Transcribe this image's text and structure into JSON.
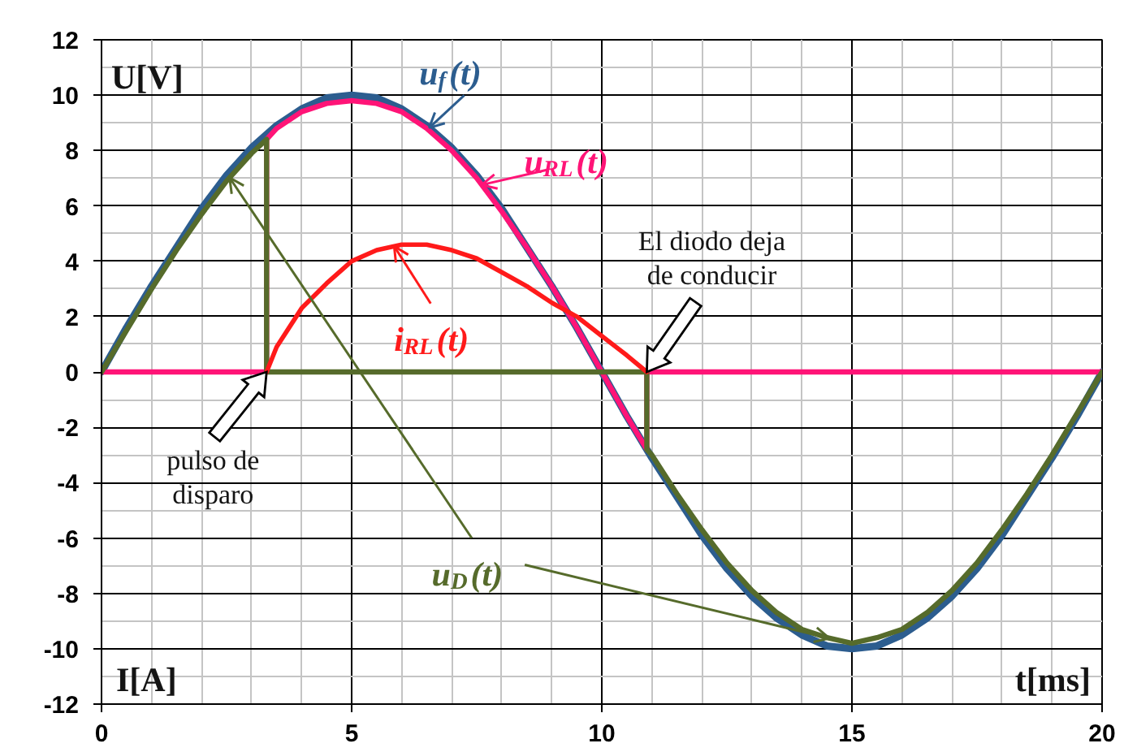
{
  "chart_data": {
    "type": "line",
    "xlabel": "t[ms]",
    "ylabel": "U[V]",
    "annotations": [
      "I[A]",
      {
        "text": "pulso de\ndisparo",
        "x": 3.3,
        "y": 0
      },
      {
        "text": "El diodo deja\nde conducir",
        "x": 10.9,
        "y": 0
      }
    ],
    "xlim": [
      0,
      20
    ],
    "ylim": [
      -12,
      12
    ],
    "xticks": [
      0,
      {
        "value": 1,
        "label": null
      },
      {
        "value": 2,
        "label": null
      },
      {
        "value": 3,
        "label": null
      },
      {
        "value": 4,
        "label": null
      },
      5,
      {
        "value": 6,
        "label": null
      },
      {
        "value": 7,
        "label": null
      },
      {
        "value": 8,
        "label": null
      },
      {
        "value": 9,
        "label": null
      },
      10,
      {
        "value": 11,
        "label": null
      },
      {
        "value": 12,
        "label": null
      },
      {
        "value": 13,
        "label": null
      },
      {
        "value": 14,
        "label": null
      },
      15,
      {
        "value": 16,
        "label": null
      },
      {
        "value": 17,
        "label": null
      },
      {
        "value": 18,
        "label": null
      },
      {
        "value": 19,
        "label": null
      },
      20
    ],
    "yticks": [
      -12,
      {
        "value": -11,
        "label": null
      },
      -10,
      {
        "value": -9,
        "label": null
      },
      -8,
      {
        "value": -7,
        "label": null
      },
      -6,
      {
        "value": -5,
        "label": null
      },
      -4,
      {
        "value": -3,
        "label": null
      },
      -2,
      {
        "value": -1,
        "label": null
      },
      0,
      {
        "value": 1,
        "label": null
      },
      2,
      {
        "value": 3,
        "label": null
      },
      4,
      {
        "value": 5,
        "label": null
      },
      6,
      {
        "value": 7,
        "label": null
      },
      8,
      {
        "value": 9,
        "label": null
      },
      10,
      {
        "value": 11,
        "label": null
      },
      12
    ],
    "grid": true,
    "series": [
      {
        "name": "u$_{f}$(t)",
        "color": "#2c5d8f",
        "x": [
          0,
          0.5,
          1,
          1.5,
          2,
          2.5,
          3,
          3.5,
          4,
          4.5,
          5,
          5.5,
          6,
          6.5,
          7,
          7.5,
          8,
          8.5,
          9,
          9.5,
          10,
          10.5,
          11,
          11.5,
          12,
          12.5,
          13,
          13.5,
          14,
          14.5,
          15,
          15.5,
          16,
          16.5,
          17,
          17.5,
          18,
          18.5,
          19,
          19.5,
          20
        ],
        "values": [
          0,
          1.6,
          3.1,
          4.5,
          5.9,
          7.1,
          8.1,
          8.9,
          9.5,
          9.9,
          10,
          9.9,
          9.5,
          8.9,
          8.1,
          7.1,
          5.9,
          4.5,
          3.1,
          1.6,
          0,
          -1.6,
          -3.1,
          -4.5,
          -5.9,
          -7.1,
          -8.1,
          -8.9,
          -9.5,
          -9.9,
          -10,
          -9.9,
          -9.5,
          -8.9,
          -8.1,
          -7.1,
          -5.9,
          -4.5,
          -3.1,
          -1.6,
          0
        ]
      },
      {
        "name": "u$_{RL}$(t)",
        "color": "#ff1477",
        "x": [
          0,
          3.3,
          3.3,
          3.5,
          4,
          4.5,
          5,
          5.5,
          6,
          6.5,
          7,
          7.5,
          8,
          8.5,
          9,
          9.5,
          10,
          10.5,
          10.9,
          10.9,
          20
        ],
        "values": [
          0,
          0,
          8.4,
          8.8,
          9.4,
          9.7,
          9.8,
          9.7,
          9.4,
          8.8,
          8.0,
          7.0,
          5.8,
          4.5,
          3.1,
          1.6,
          0,
          -1.6,
          -2.8,
          0,
          0
        ]
      },
      {
        "name": "u$_{D}$(t)",
        "color": "#566b2b",
        "x": [
          0,
          0.5,
          1,
          1.5,
          2,
          2.5,
          3,
          3.3,
          3.3,
          10.9,
          10.9,
          11,
          11.5,
          12,
          12.5,
          13,
          13.5,
          14,
          14.5,
          15,
          15.5,
          16,
          16.5,
          17,
          17.5,
          18,
          18.5,
          19,
          19.5,
          20
        ],
        "values": [
          0,
          1.5,
          3.0,
          4.4,
          5.7,
          6.9,
          7.9,
          8.4,
          0,
          0,
          -2.8,
          -3.0,
          -4.4,
          -5.7,
          -6.9,
          -7.9,
          -8.7,
          -9.3,
          -9.6,
          -9.8,
          -9.6,
          -9.3,
          -8.7,
          -7.9,
          -6.9,
          -5.7,
          -4.4,
          -3.0,
          -1.5,
          0
        ]
      },
      {
        "name": "i$_{RL}$(t)",
        "color": "#ff1a1a",
        "x": [
          3.3,
          3.5,
          4,
          4.5,
          5,
          5.5,
          6,
          6.5,
          7,
          7.5,
          8,
          8.5,
          9,
          9.5,
          10,
          10.5,
          10.9
        ],
        "values": [
          0,
          0.9,
          2.3,
          3.2,
          4.0,
          4.4,
          4.6,
          4.6,
          4.4,
          4.1,
          3.6,
          3.1,
          2.5,
          2.0,
          1.3,
          0.6,
          0
        ]
      }
    ]
  }
}
